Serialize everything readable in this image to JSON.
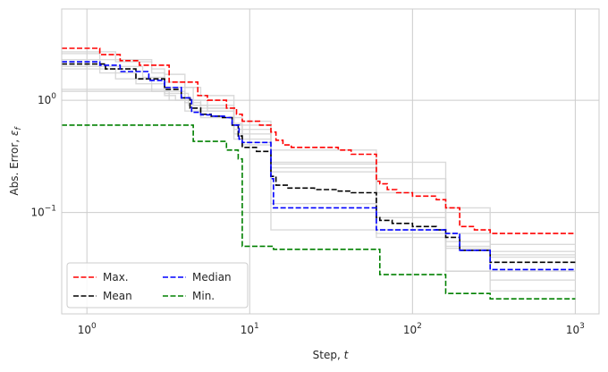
{
  "chart_data": {
    "type": "line",
    "title": "",
    "xlabel": "Step, t",
    "xlabel_text": "Step, ",
    "xlabel_var": "t",
    "ylabel": "Abs. Error, ε_f",
    "ylabel_text": "Abs. Error, ",
    "ylabel_var": "ε",
    "ylabel_sub": "f",
    "xscale": "log",
    "yscale": "log",
    "xlim": [
      0.7,
      1400
    ],
    "ylim": [
      0.0125,
      6.5
    ],
    "grid": true,
    "step": "post",
    "x_ticks": [
      {
        "value": 1,
        "base": "10",
        "exp": "0"
      },
      {
        "value": 10,
        "base": "10",
        "exp": "1"
      },
      {
        "value": 100,
        "base": "10",
        "exp": "2"
      },
      {
        "value": 1000,
        "base": "10",
        "exp": "3"
      }
    ],
    "y_ticks": [
      {
        "value": 0.1,
        "base": "10",
        "exp": "−1"
      },
      {
        "value": 1,
        "base": "10",
        "exp": "0"
      }
    ],
    "legend": {
      "position": "lower-left",
      "columns": 2
    },
    "series": [
      {
        "name": "Max.",
        "color": "#ff0000",
        "style": "dashed",
        "x": [
          0.7,
          1.2,
          1.6,
          2.1,
          3.2,
          4.8,
          5.5,
          7.2,
          8.3,
          9.0,
          11.5,
          13.5,
          14.5,
          16.0,
          18.0,
          35.0,
          42.0,
          60.0,
          63.0,
          70.0,
          80.0,
          100.0,
          140.0,
          160.0,
          195.0,
          240.0,
          300.0,
          1000.0
        ],
        "values": [
          2.9,
          2.55,
          2.25,
          2.05,
          1.45,
          1.1,
          1.0,
          0.85,
          0.75,
          0.65,
          0.6,
          0.52,
          0.44,
          0.4,
          0.38,
          0.36,
          0.33,
          0.19,
          0.18,
          0.16,
          0.15,
          0.14,
          0.13,
          0.11,
          0.075,
          0.07,
          0.065,
          0.065
        ]
      },
      {
        "name": "Mean",
        "color": "#000000",
        "style": "dashed",
        "x": [
          0.7,
          1.3,
          2.0,
          3.0,
          3.8,
          4.3,
          5.0,
          5.8,
          6.8,
          7.8,
          8.5,
          9.0,
          11.0,
          13.5,
          14.5,
          17.0,
          25.0,
          35.0,
          42.0,
          60.0,
          63.0,
          75.0,
          100.0,
          140.0,
          160.0,
          195.0,
          300.0,
          1000.0
        ],
        "values": [
          2.1,
          1.9,
          1.55,
          1.25,
          1.05,
          0.85,
          0.75,
          0.72,
          0.7,
          0.6,
          0.48,
          0.38,
          0.35,
          0.21,
          0.175,
          0.165,
          0.16,
          0.155,
          0.15,
          0.09,
          0.085,
          0.08,
          0.075,
          0.07,
          0.06,
          0.046,
          0.036,
          0.036
        ]
      },
      {
        "name": "Median",
        "color": "#0000ff",
        "style": "dashed",
        "x": [
          0.7,
          1.2,
          1.6,
          2.4,
          3.0,
          3.8,
          4.4,
          5.0,
          5.8,
          7.0,
          7.8,
          8.6,
          9.0,
          13.5,
          14.0,
          60.0,
          63.0,
          160.0,
          195.0,
          300.0,
          1000.0
        ],
        "values": [
          2.2,
          2.05,
          1.8,
          1.5,
          1.3,
          1.05,
          0.78,
          0.74,
          0.72,
          0.7,
          0.6,
          0.45,
          0.42,
          0.2,
          0.11,
          0.07,
          0.07,
          0.065,
          0.046,
          0.031,
          0.031
        ]
      },
      {
        "name": "Min.",
        "color": "#008000",
        "style": "dashed",
        "x": [
          0.7,
          3.0,
          4.5,
          7.2,
          8.5,
          9.0,
          13.5,
          14.0,
          60.0,
          63.0,
          155.0,
          160.0,
          300.0,
          1000.0
        ],
        "values": [
          0.6,
          0.6,
          0.43,
          0.36,
          0.3,
          0.05,
          0.05,
          0.047,
          0.047,
          0.028,
          0.028,
          0.019,
          0.017,
          0.017
        ]
      }
    ],
    "background_runs": [
      {
        "x": [
          0.7,
          1.5,
          2.5,
          3.0,
          4.0,
          5.5,
          8.0,
          9.0,
          13.5,
          60.0,
          160.0,
          300.0,
          1000.0
        ],
        "values": [
          2.7,
          2.2,
          1.75,
          1.45,
          1.0,
          0.85,
          0.62,
          0.6,
          0.28,
          0.2,
          0.055,
          0.052,
          0.052
        ]
      },
      {
        "x": [
          0.7,
          1.2,
          2.0,
          3.0,
          4.2,
          5.5,
          8.0,
          9.0,
          13.5,
          60.0,
          160.0,
          300.0,
          1000.0
        ],
        "values": [
          2.0,
          1.75,
          1.4,
          1.15,
          0.9,
          0.8,
          0.6,
          0.5,
          0.36,
          0.28,
          0.048,
          0.045,
          0.045
        ]
      },
      {
        "x": [
          0.7,
          1.0,
          2.0,
          3.0,
          3.5,
          5.0,
          8.0,
          9.0,
          13.5,
          60.0,
          160.0,
          300.0,
          1000.0
        ],
        "values": [
          1.25,
          1.25,
          1.25,
          1.1,
          1.0,
          0.8,
          0.55,
          0.45,
          0.27,
          0.09,
          0.065,
          0.04,
          0.04
        ]
      },
      {
        "x": [
          0.7,
          1.5,
          2.5,
          3.2,
          4.0,
          5.0,
          8.0,
          9.0,
          13.5,
          60.0,
          160.0,
          300.0,
          1000.0
        ],
        "values": [
          1.9,
          1.55,
          1.2,
          1.0,
          0.8,
          0.7,
          0.5,
          0.42,
          0.25,
          0.07,
          0.03,
          0.03,
          0.03
        ]
      },
      {
        "x": [
          0.7,
          1.0,
          3.0,
          4.0,
          5.0,
          8.0,
          9.0,
          13.5,
          60.0,
          160.0,
          300.0,
          1000.0
        ],
        "values": [
          1.2,
          1.2,
          1.2,
          0.95,
          0.85,
          0.45,
          0.4,
          0.12,
          0.065,
          0.03,
          0.025,
          0.025
        ]
      },
      {
        "x": [
          0.7,
          1.2,
          2.2,
          3.0,
          4.5,
          8.0,
          9.0,
          13.5,
          60.0,
          160.0,
          300.0,
          1000.0
        ],
        "values": [
          2.3,
          2.0,
          1.6,
          1.3,
          0.9,
          0.6,
          0.55,
          0.07,
          0.06,
          0.05,
          0.02,
          0.02
        ]
      },
      {
        "x": [
          0.7,
          1.2,
          2.5,
          3.0,
          4.0,
          5.0,
          8.0,
          9.0,
          13.5,
          60.0,
          160.0,
          300.0,
          1000.0
        ],
        "values": [
          2.6,
          2.3,
          1.9,
          1.7,
          1.3,
          1.1,
          0.7,
          0.65,
          0.23,
          0.15,
          0.11,
          0.042,
          0.042
        ]
      }
    ]
  }
}
